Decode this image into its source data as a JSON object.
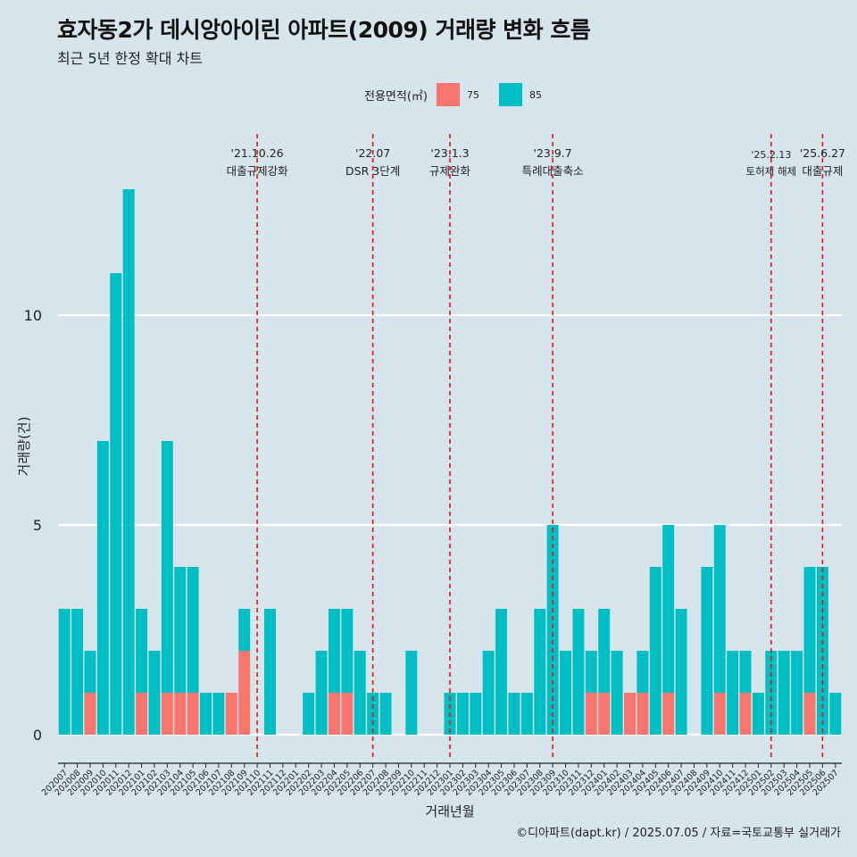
{
  "title": "효자동2가 데시앙아이린 아파트(2009) 거래량 변화 흐름",
  "subtitle": "최근 5년 한정 확대 차트",
  "caption": "©디아파트(dapt.kr) / 2025.07.05 / 자료=국토교통부 실거래가",
  "legend": {
    "title": "전용면적(㎡)",
    "items": [
      {
        "label": "75",
        "color": "#f8766d"
      },
      {
        "label": "85",
        "color": "#00bfc4"
      }
    ]
  },
  "chart_data": {
    "type": "bar",
    "stacked": true,
    "xlabel": "거래년월",
    "ylabel": "거래량(건)",
    "ylim": [
      0,
      13.8
    ],
    "yticks": [
      0,
      5,
      10
    ],
    "categories": [
      "202007",
      "202008",
      "202009",
      "202010",
      "202011",
      "202012",
      "202101",
      "202102",
      "202103",
      "202104",
      "202105",
      "202106",
      "202107",
      "202108",
      "202109",
      "202110",
      "202111",
      "202112",
      "202201",
      "202202",
      "202203",
      "202204",
      "202205",
      "202206",
      "202207",
      "202208",
      "202209",
      "202210",
      "202211",
      "202212",
      "202301",
      "202302",
      "202303",
      "202304",
      "202305",
      "202306",
      "202307",
      "202308",
      "202309",
      "202310",
      "202311",
      "202312",
      "202401",
      "202402",
      "202403",
      "202404",
      "202405",
      "202406",
      "202407",
      "202408",
      "202409",
      "202410",
      "202411",
      "202412",
      "202501",
      "202502",
      "202503",
      "202504",
      "202505",
      "202506",
      "202507"
    ],
    "series": [
      {
        "name": "75",
        "color": "#f8766d",
        "values": [
          0,
          0,
          1,
          0,
          0,
          0,
          1,
          0,
          1,
          1,
          1,
          0,
          0,
          1,
          2,
          0,
          0,
          0,
          0,
          0,
          0,
          1,
          1,
          0,
          0,
          0,
          0,
          0,
          0,
          0,
          0,
          0,
          0,
          0,
          0,
          0,
          0,
          0,
          0,
          0,
          0,
          1,
          1,
          0,
          1,
          1,
          0,
          1,
          0,
          0,
          0,
          1,
          0,
          1,
          0,
          0,
          0,
          0,
          1,
          0,
          0
        ]
      },
      {
        "name": "85",
        "color": "#00bfc4",
        "values": [
          3,
          3,
          1,
          7,
          11,
          13,
          2,
          2,
          6,
          3,
          3,
          1,
          1,
          0,
          1,
          0,
          3,
          0,
          0,
          1,
          2,
          2,
          2,
          2,
          1,
          1,
          0,
          2,
          0,
          0,
          1,
          1,
          1,
          2,
          3,
          1,
          1,
          3,
          5,
          2,
          3,
          1,
          2,
          2,
          0,
          1,
          4,
          4,
          3,
          0,
          4,
          4,
          2,
          1,
          1,
          2,
          2,
          2,
          3,
          4,
          1
        ]
      }
    ],
    "events": [
      {
        "date": "'21.10.26",
        "label": "대출규제강화",
        "x": "202110"
      },
      {
        "date": "'22.07",
        "label": "DSR 3단계",
        "x": "202207"
      },
      {
        "date": "'23.1.3",
        "label": "규제완화",
        "x": "202301"
      },
      {
        "date": "'23.9.7",
        "label": "특례대출축소",
        "x": "202309"
      },
      {
        "date": "'25.2.13",
        "label": "토허제 해제",
        "x": "202502"
      },
      {
        "date": "'25.6.27",
        "label": "대출규제",
        "x": "202506"
      }
    ]
  }
}
